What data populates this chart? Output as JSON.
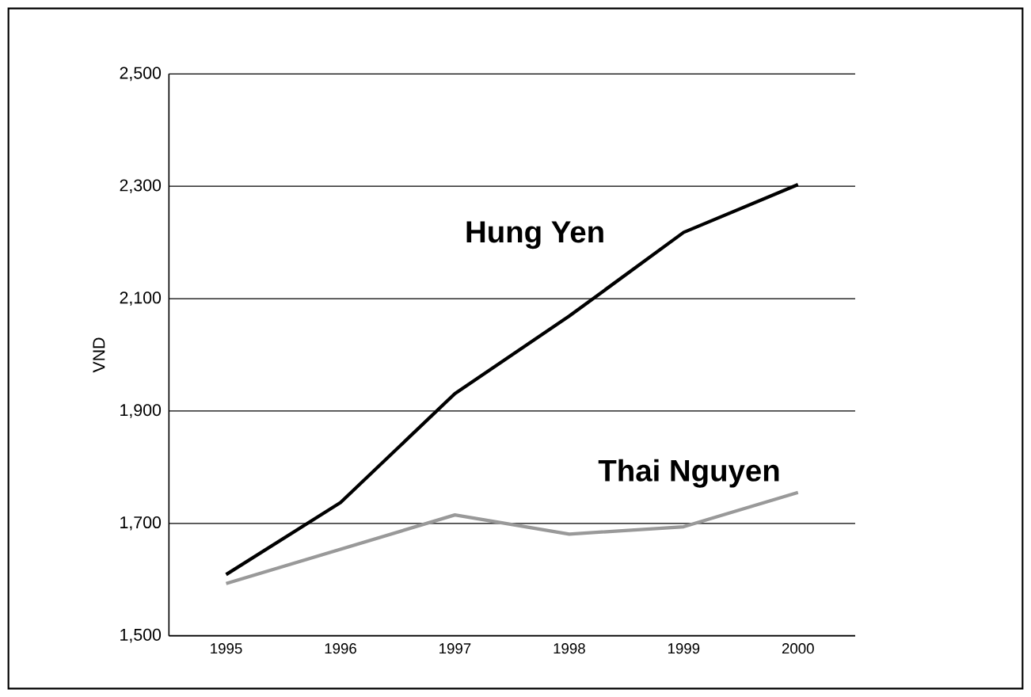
{
  "chart_data": {
    "type": "line",
    "ylabel": "VND",
    "categories": [
      "1995",
      "1996",
      "1997",
      "1998",
      "1999",
      "2000"
    ],
    "series": [
      {
        "name": "Hung Yen",
        "color": "#000000",
        "values": [
          1609,
          1737,
          1931,
          2069,
          2218,
          2303
        ]
      },
      {
        "name": "Thai Nguyen",
        "color": "#999999",
        "values": [
          1593,
          1654,
          1715,
          1681,
          1694,
          1755
        ]
      }
    ],
    "ylim": [
      1500,
      2500
    ],
    "yticks": [
      {
        "value": 1500,
        "label": "1,500"
      },
      {
        "value": 1700,
        "label": "1,700"
      },
      {
        "value": 1900,
        "label": "1,900"
      },
      {
        "value": 2100,
        "label": "2,100"
      },
      {
        "value": 2300,
        "label": "2,300"
      },
      {
        "value": 2500,
        "label": "2,500"
      }
    ],
    "grid": "y",
    "legend": false,
    "marker": "none",
    "line_style": "solid"
  }
}
